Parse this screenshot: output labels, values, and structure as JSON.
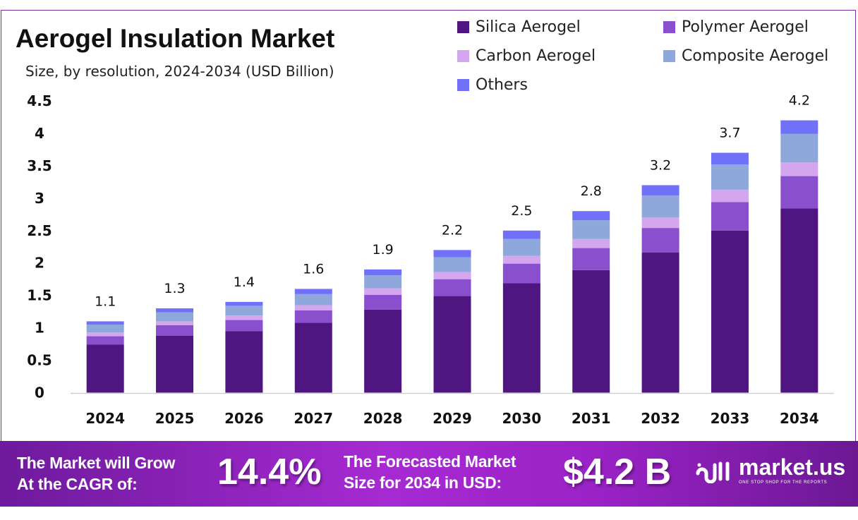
{
  "chart_data": {
    "type": "bar",
    "stacked": true,
    "title": "Aerogel Insulation Market",
    "subtitle": "Size, by resolution, 2024-2034 (USD Billion)",
    "xlabel": "",
    "ylabel": "",
    "ylim": [
      0,
      4.5
    ],
    "yticks": [
      "0",
      "0.5",
      "1",
      "1.5",
      "2",
      "2.5",
      "3",
      "3.5",
      "4",
      "4.5"
    ],
    "grid": false,
    "legend_position": "top-right",
    "categories": [
      "2024",
      "2025",
      "2026",
      "2027",
      "2028",
      "2029",
      "2030",
      "2031",
      "2032",
      "2033",
      "2034"
    ],
    "totals": [
      "1.1",
      "1.3",
      "1.4",
      "1.6",
      "1.9",
      "2.2",
      "2.5",
      "2.8",
      "3.2",
      "3.7",
      "4.2"
    ],
    "series": [
      {
        "name": "Silica Aerogel",
        "color": "#4f1580",
        "values": [
          0.74,
          0.88,
          0.95,
          1.08,
          1.28,
          1.49,
          1.69,
          1.89,
          2.16,
          2.5,
          2.84
        ]
      },
      {
        "name": "Polymer Aerogel",
        "color": "#8a4fcc",
        "values": [
          0.13,
          0.16,
          0.17,
          0.19,
          0.23,
          0.26,
          0.3,
          0.34,
          0.38,
          0.44,
          0.5
        ]
      },
      {
        "name": "Carbon Aerogel",
        "color": "#d3a6ee",
        "values": [
          0.06,
          0.06,
          0.07,
          0.08,
          0.1,
          0.11,
          0.12,
          0.14,
          0.16,
          0.19,
          0.21
        ]
      },
      {
        "name": "Composite Aerogel",
        "color": "#8fa8dc",
        "values": [
          0.12,
          0.14,
          0.15,
          0.17,
          0.2,
          0.23,
          0.26,
          0.29,
          0.34,
          0.39,
          0.44
        ]
      },
      {
        "name": "Others",
        "color": "#7070f8",
        "values": [
          0.05,
          0.06,
          0.06,
          0.08,
          0.09,
          0.11,
          0.13,
          0.14,
          0.16,
          0.18,
          0.21
        ]
      }
    ]
  },
  "banner": {
    "cagr_label_1": "The Market will Grow",
    "cagr_label_2": "At the CAGR of:",
    "cagr_value": "14.4%",
    "forecast_label_1": "The Forecasted Market",
    "forecast_label_2": "Size for 2034 in USD:",
    "forecast_value": "$4.2 B",
    "logo_text": "market.us",
    "logo_tagline": "ONE STOP SHOP FOR THE REPORTS"
  }
}
